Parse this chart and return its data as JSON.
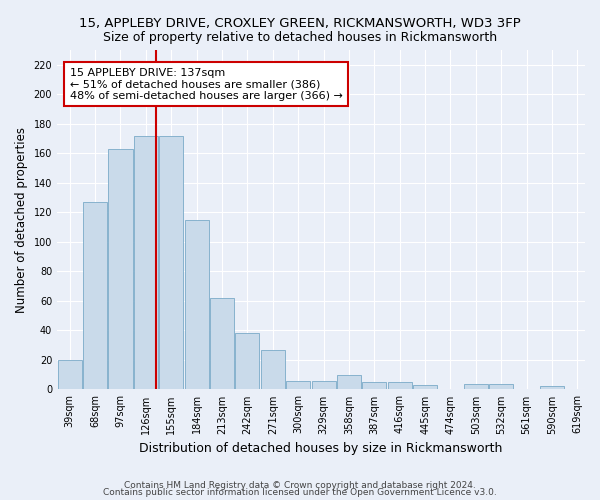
{
  "title": "15, APPLEBY DRIVE, CROXLEY GREEN, RICKMANSWORTH, WD3 3FP",
  "subtitle": "Size of property relative to detached houses in Rickmansworth",
  "xlabel": "Distribution of detached houses by size in Rickmansworth",
  "ylabel": "Number of detached properties",
  "bar_color": "#c9daea",
  "bar_edgecolor": "#7aaac8",
  "vline_color": "#cc0000",
  "annotation_text": "15 APPLEBY DRIVE: 137sqm\n← 51% of detached houses are smaller (386)\n48% of semi-detached houses are larger (366) →",
  "annotation_box_color": "white",
  "annotation_box_edgecolor": "#cc0000",
  "footer1": "Contains HM Land Registry data © Crown copyright and database right 2024.",
  "footer2": "Contains public sector information licensed under the Open Government Licence v3.0.",
  "bin_labels": [
    "39sqm",
    "68sqm",
    "97sqm",
    "126sqm",
    "155sqm",
    "184sqm",
    "213sqm",
    "242sqm",
    "271sqm",
    "300sqm",
    "329sqm",
    "358sqm",
    "387sqm",
    "416sqm",
    "445sqm",
    "474sqm",
    "503sqm",
    "532sqm",
    "561sqm",
    "590sqm",
    "619sqm"
  ],
  "counts": [
    20,
    127,
    163,
    172,
    172,
    115,
    62,
    38,
    27,
    6,
    6,
    10,
    5,
    5,
    3,
    0,
    4,
    4,
    0,
    2
  ],
  "vline_bar_index": 3.38,
  "ylim": [
    0,
    230
  ],
  "yticks": [
    0,
    20,
    40,
    60,
    80,
    100,
    120,
    140,
    160,
    180,
    200,
    220
  ],
  "background_color": "#eaeff8",
  "grid_color": "#ffffff",
  "title_fontsize": 9.5,
  "subtitle_fontsize": 9,
  "xlabel_fontsize": 9,
  "ylabel_fontsize": 8.5,
  "tick_fontsize": 7,
  "footer_fontsize": 6.5,
  "annotation_fontsize": 8
}
